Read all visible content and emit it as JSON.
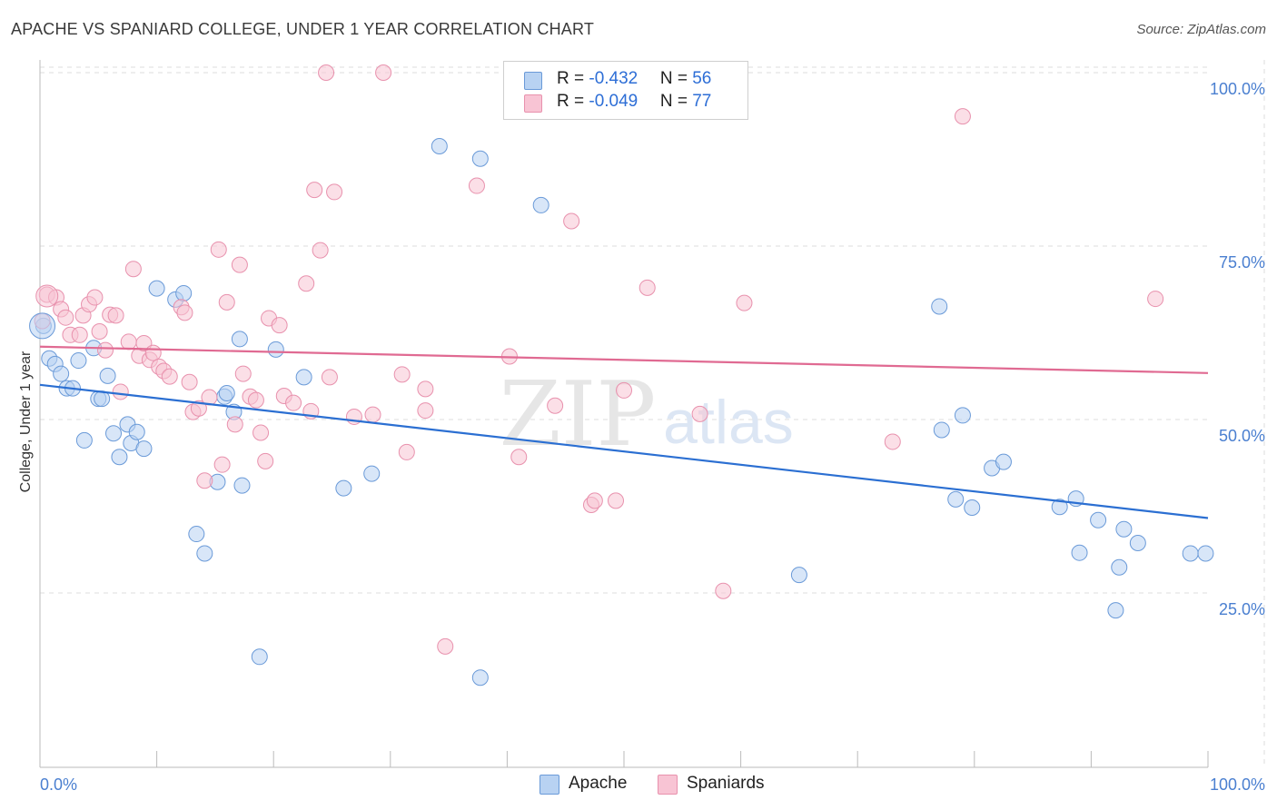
{
  "title": "APACHE VS SPANIARD COLLEGE, UNDER 1 YEAR CORRELATION CHART",
  "source": "Source: ZipAtlas.com",
  "legend": {
    "r_label": "R = ",
    "n_label": "N = ",
    "apache": {
      "r": "-0.432",
      "n": "56"
    },
    "spaniards": {
      "r": "-0.049",
      "n": "77"
    }
  },
  "bottom_legend": {
    "apache": "Apache",
    "spaniards": "Spaniards"
  },
  "colors": {
    "apache_fill": "#b8d2f2",
    "apache_stroke": "#6a9ad8",
    "apache_line": "#2b6fd2",
    "spaniards_fill": "#f8c4d4",
    "spaniards_stroke": "#e891ad",
    "spaniards_line": "#e06a92",
    "tick": "#4a7fd0"
  },
  "watermark": {
    "zip": "ZIP",
    "atlas": "atlas"
  },
  "chart_data": {
    "type": "scatter",
    "title": "APACHE VS SPANIARD COLLEGE, UNDER 1 YEAR CORRELATION CHART",
    "xlabel": "",
    "ylabel": "College, Under 1 year",
    "xlim": [
      0,
      100
    ],
    "ylim": [
      0,
      102
    ],
    "x_tick_labels": [
      "0.0%",
      "100.0%"
    ],
    "y_ticks": [
      25,
      50,
      75,
      100
    ],
    "y_tick_labels": [
      "25.0%",
      "50.0%",
      "75.0%",
      "100.0%"
    ],
    "grid": true,
    "legend_position": "top-center",
    "series": [
      {
        "name": "Apache",
        "trend": [
          [
            0,
            55.0
          ],
          [
            100,
            35.8
          ]
        ],
        "points": [
          [
            0.3,
            63.5
          ],
          [
            0.8,
            58.8
          ],
          [
            1.3,
            58.0
          ],
          [
            1.8,
            56.6
          ],
          [
            2.3,
            54.5
          ],
          [
            2.8,
            54.5
          ],
          [
            3.3,
            58.5
          ],
          [
            3.8,
            47.0
          ],
          [
            4.6,
            60.3
          ],
          [
            5.0,
            53.0
          ],
          [
            5.3,
            53.0
          ],
          [
            5.8,
            56.3
          ],
          [
            6.3,
            48.0
          ],
          [
            6.8,
            44.6
          ],
          [
            7.5,
            49.3
          ],
          [
            7.8,
            46.6
          ],
          [
            8.3,
            48.2
          ],
          [
            8.9,
            45.8
          ],
          [
            10.0,
            68.9
          ],
          [
            11.6,
            67.3
          ],
          [
            12.3,
            68.2
          ],
          [
            13.4,
            33.5
          ],
          [
            14.1,
            30.7
          ],
          [
            15.2,
            41.0
          ],
          [
            15.8,
            53.3
          ],
          [
            16.0,
            53.8
          ],
          [
            16.6,
            51.1
          ],
          [
            17.1,
            61.6
          ],
          [
            17.3,
            40.5
          ],
          [
            18.8,
            15.8
          ],
          [
            20.2,
            60.1
          ],
          [
            22.6,
            56.1
          ],
          [
            26.0,
            40.1
          ],
          [
            28.4,
            42.2
          ],
          [
            34.2,
            89.4
          ],
          [
            37.7,
            12.8
          ],
          [
            37.7,
            87.6
          ],
          [
            42.9,
            80.9
          ],
          [
            65.0,
            27.6
          ],
          [
            77.0,
            66.3
          ],
          [
            77.2,
            48.5
          ],
          [
            78.4,
            38.5
          ],
          [
            79.0,
            50.6
          ],
          [
            79.8,
            37.3
          ],
          [
            81.5,
            43.0
          ],
          [
            82.5,
            43.9
          ],
          [
            87.3,
            37.4
          ],
          [
            88.7,
            38.6
          ],
          [
            89.0,
            30.8
          ],
          [
            90.6,
            35.5
          ],
          [
            92.1,
            22.5
          ],
          [
            92.4,
            28.7
          ],
          [
            92.8,
            34.2
          ],
          [
            94.0,
            32.2
          ],
          [
            98.5,
            30.7
          ],
          [
            99.8,
            30.7
          ]
        ]
      },
      {
        "name": "Spaniards",
        "trend": [
          [
            0,
            60.5
          ],
          [
            100,
            56.7
          ]
        ],
        "points": [
          [
            0.6,
            68.0
          ],
          [
            1.4,
            67.6
          ],
          [
            1.8,
            65.9
          ],
          [
            2.2,
            64.7
          ],
          [
            2.6,
            62.2
          ],
          [
            3.4,
            62.2
          ],
          [
            3.7,
            65.0
          ],
          [
            4.2,
            66.6
          ],
          [
            4.7,
            67.6
          ],
          [
            5.1,
            62.7
          ],
          [
            5.6,
            60.0
          ],
          [
            6.0,
            65.1
          ],
          [
            6.5,
            65.0
          ],
          [
            6.9,
            54.0
          ],
          [
            7.6,
            61.2
          ],
          [
            8.0,
            71.7
          ],
          [
            8.5,
            59.2
          ],
          [
            8.9,
            61.0
          ],
          [
            9.4,
            58.6
          ],
          [
            9.7,
            59.6
          ],
          [
            10.2,
            57.6
          ],
          [
            10.6,
            57.0
          ],
          [
            11.1,
            56.2
          ],
          [
            12.1,
            66.2
          ],
          [
            12.4,
            65.4
          ],
          [
            12.8,
            55.4
          ],
          [
            13.1,
            51.1
          ],
          [
            13.6,
            51.6
          ],
          [
            14.1,
            41.2
          ],
          [
            14.5,
            53.2
          ],
          [
            15.3,
            74.5
          ],
          [
            15.6,
            43.5
          ],
          [
            16.0,
            66.9
          ],
          [
            16.7,
            49.3
          ],
          [
            17.1,
            72.3
          ],
          [
            17.4,
            56.6
          ],
          [
            18.0,
            53.3
          ],
          [
            18.5,
            52.8
          ],
          [
            18.9,
            48.1
          ],
          [
            19.3,
            44.0
          ],
          [
            19.6,
            64.6
          ],
          [
            20.5,
            63.6
          ],
          [
            20.9,
            53.4
          ],
          [
            21.7,
            52.4
          ],
          [
            22.8,
            69.6
          ],
          [
            23.2,
            51.2
          ],
          [
            23.5,
            83.1
          ],
          [
            24.0,
            74.4
          ],
          [
            24.5,
            100.0
          ],
          [
            24.8,
            56.1
          ],
          [
            26.9,
            50.4
          ],
          [
            28.5,
            50.7
          ],
          [
            29.4,
            100.0
          ],
          [
            31.0,
            56.5
          ],
          [
            31.4,
            45.3
          ],
          [
            33.0,
            51.3
          ],
          [
            33.0,
            54.4
          ],
          [
            34.7,
            17.3
          ],
          [
            37.4,
            83.7
          ],
          [
            40.2,
            59.1
          ],
          [
            41.0,
            44.6
          ],
          [
            44.1,
            52.0
          ],
          [
            45.5,
            78.6
          ],
          [
            47.2,
            37.7
          ],
          [
            47.5,
            38.3
          ],
          [
            49.3,
            38.3
          ],
          [
            49.5,
            100.0
          ],
          [
            50.0,
            54.2
          ],
          [
            52.0,
            69.0
          ],
          [
            56.5,
            50.8
          ],
          [
            58.5,
            25.3
          ],
          [
            60.3,
            66.8
          ],
          [
            73.0,
            46.8
          ],
          [
            79.0,
            93.7
          ],
          [
            95.5,
            67.4
          ],
          [
            0.2,
            64.2
          ],
          [
            25.2,
            82.8
          ]
        ]
      }
    ]
  }
}
